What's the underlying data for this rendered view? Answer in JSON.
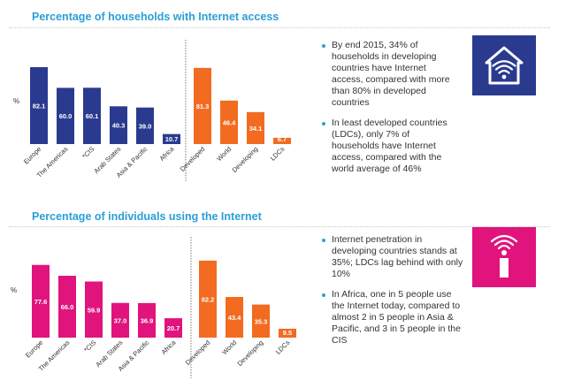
{
  "sections": [
    {
      "title": "Percentage of households with Internet access",
      "notes": [
        "By end 2015, 34% of households in developing countries  have Internet access, compared with more than 80% in developed countries",
        "In least developed countries (LDCs), only 7% of households have Internet access, compared with the world average of 46%"
      ]
    },
    {
      "title": "Percentage of individuals using the Internet",
      "notes": [
        "Internet penetration in developing countries stands at 35%; LDCs lag behind with only 10%",
        "In Africa, one in 5 people use the Internet today, compared to almost 2 in 5 people in Asia & Pacific, and 3 in 5 people in the CIS"
      ]
    }
  ],
  "icons": [
    "house-wifi-icon",
    "person-wifi-icon"
  ],
  "colors": {
    "title": "#2a9fd6",
    "regions_households": "#2a3b8f",
    "regions_individuals": "#e0147c",
    "development_groups": "#f26b21",
    "bullet": "#2a9fd6"
  },
  "chart_data": [
    {
      "type": "bar",
      "ylabel": "%",
      "categories": [
        "Europe",
        "The Americas",
        "*CIS",
        "Arab States",
        "Asia & Pacific",
        "Africa",
        "Developed",
        "World",
        "Developing",
        "LDCs"
      ],
      "values": [
        82.1,
        60.0,
        60.1,
        40.3,
        39.0,
        10.7,
        81.3,
        46.4,
        34.1,
        6.7
      ],
      "value_labels": [
        "82.1",
        "60.0",
        "60.1",
        "40.3",
        "39.0",
        "10.7",
        "81.3",
        "46.4",
        "34.1",
        "6.7"
      ],
      "groups": [
        "regions",
        "regions",
        "regions",
        "regions",
        "regions",
        "regions",
        "development",
        "development",
        "development",
        "development"
      ],
      "ylim": [
        0,
        100
      ],
      "grid": false,
      "legend": "none"
    },
    {
      "type": "bar",
      "ylabel": "%",
      "categories": [
        "Europe",
        "The Americas",
        "*CIS",
        "Arab States",
        "Asia & Pacific",
        "Africa",
        "Developed",
        "World",
        "Developing",
        "LDCs"
      ],
      "values": [
        77.6,
        66.0,
        59.9,
        37.0,
        36.9,
        20.7,
        82.2,
        43.4,
        35.3,
        9.5
      ],
      "value_labels": [
        "77.6",
        "66.0",
        "59.9",
        "37.0",
        "36.9",
        "20.7",
        "82.2",
        "43.4",
        "35.3",
        "9.5"
      ],
      "groups": [
        "regions",
        "regions",
        "regions",
        "regions",
        "regions",
        "regions",
        "development",
        "development",
        "development",
        "development"
      ],
      "ylim": [
        0,
        100
      ],
      "grid": false,
      "legend": "none"
    }
  ]
}
